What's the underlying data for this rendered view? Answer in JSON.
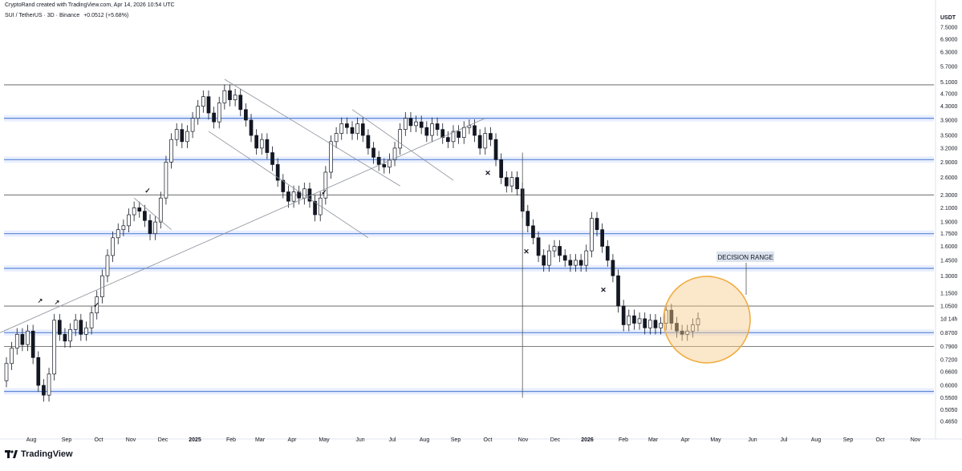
{
  "header": {
    "credit": "CryptoRand created with TradingView.com, Apr 14, 2026 10:54 UTC",
    "symbol_line": "SUI / TetherUS · 3D · Binance",
    "change": "+0.0512 (+5.68%)"
  },
  "footer": {
    "brand": "TradingView"
  },
  "colors": {
    "up": "#ffffff",
    "down": "#131722",
    "level_blue": "#2962ff",
    "circle_fill": "#f7c988",
    "circle_stroke": "#f0a93a"
  },
  "chart_data": {
    "type": "candlestick",
    "title": "SUI / TetherUS · 3D · Binance",
    "ylabel": "USDT",
    "y_scale": "log",
    "ylim": [
      0.43,
      8.6
    ],
    "x_ticks": [
      "Aug",
      "Sep",
      "Oct",
      "Nov",
      "Dec",
      "2025",
      "Feb",
      "Mar",
      "Apr",
      "May",
      "Jun",
      "Jul",
      "Aug",
      "Sep",
      "Oct",
      "Nov",
      "Dec",
      "2026",
      "Feb",
      "Mar",
      "Apr",
      "May",
      "Jun",
      "Jul",
      "Aug",
      "Sep",
      "Oct",
      "Nov"
    ],
    "y_ticks": [
      "7.5000",
      "6.9000",
      "6.3000",
      "5.7000",
      "5.1000",
      "4.7000",
      "4.3000",
      "3.9000",
      "3.5000",
      "3.2000",
      "2.9000",
      "2.6000",
      "2.3000",
      "2.1000",
      "1.9000",
      "1.7500",
      "1.6000",
      "1.4500",
      "1.3000",
      "1.1500",
      "1.0500",
      "1d 14h",
      "0.8700",
      "0.7900",
      "0.7200",
      "0.6600",
      "0.6000",
      "0.5500",
      "0.5050",
      "0.4650"
    ],
    "current_label": "1d 14h",
    "series": [
      {
        "values": [
          [
            0.62,
            0.7
          ],
          [
            0.7,
            0.78
          ],
          [
            0.78,
            0.86
          ],
          [
            0.86,
            0.8
          ],
          [
            0.8,
            0.88
          ],
          [
            0.88,
            0.73
          ],
          [
            0.73,
            0.6
          ],
          [
            0.6,
            0.56
          ],
          [
            0.56,
            0.65
          ],
          [
            0.65,
            0.95
          ],
          [
            0.95,
            0.86
          ],
          [
            0.86,
            0.82
          ],
          [
            0.82,
            0.89
          ],
          [
            0.89,
            0.95
          ],
          [
            0.95,
            0.86
          ],
          [
            0.86,
            0.9
          ],
          [
            0.9,
            1.0
          ],
          [
            1.0,
            1.12
          ],
          [
            1.12,
            1.3
          ],
          [
            1.3,
            1.5
          ],
          [
            1.5,
            1.7
          ],
          [
            1.7,
            1.8
          ],
          [
            1.8,
            1.85
          ],
          [
            1.85,
            2.0
          ],
          [
            2.0,
            2.1
          ],
          [
            2.1,
            2.05
          ],
          [
            2.05,
            1.92
          ],
          [
            1.92,
            1.75
          ],
          [
            1.75,
            1.9
          ],
          [
            1.9,
            2.25
          ],
          [
            2.25,
            2.9
          ],
          [
            2.9,
            3.4
          ],
          [
            3.4,
            3.65
          ],
          [
            3.65,
            3.35
          ],
          [
            3.35,
            3.6
          ],
          [
            3.6,
            3.95
          ],
          [
            3.95,
            4.3
          ],
          [
            4.3,
            4.6
          ],
          [
            4.6,
            4.1
          ],
          [
            4.1,
            3.85
          ],
          [
            3.85,
            4.4
          ],
          [
            4.4,
            4.8
          ],
          [
            4.8,
            4.5
          ],
          [
            4.5,
            4.65
          ],
          [
            4.65,
            4.2
          ],
          [
            4.2,
            3.9
          ],
          [
            3.9,
            3.5
          ],
          [
            3.5,
            3.2
          ],
          [
            3.2,
            3.4
          ],
          [
            3.4,
            3.1
          ],
          [
            3.1,
            2.85
          ],
          [
            2.85,
            2.55
          ],
          [
            2.55,
            2.35
          ],
          [
            2.35,
            2.2
          ],
          [
            2.2,
            2.35
          ],
          [
            2.35,
            2.25
          ],
          [
            2.25,
            2.4
          ],
          [
            2.4,
            2.2
          ],
          [
            2.2,
            2.0
          ],
          [
            2.0,
            2.25
          ],
          [
            2.25,
            2.7
          ],
          [
            2.7,
            3.35
          ],
          [
            3.35,
            3.55
          ],
          [
            3.55,
            3.8
          ],
          [
            3.8,
            3.7
          ],
          [
            3.7,
            3.55
          ],
          [
            3.55,
            3.8
          ],
          [
            3.8,
            3.5
          ],
          [
            3.5,
            3.2
          ],
          [
            3.2,
            3.0
          ],
          [
            3.0,
            2.85
          ],
          [
            2.85,
            2.8
          ],
          [
            2.8,
            2.95
          ],
          [
            2.95,
            3.2
          ],
          [
            3.2,
            3.65
          ],
          [
            3.65,
            3.95
          ],
          [
            3.95,
            3.75
          ],
          [
            3.75,
            3.85
          ],
          [
            3.85,
            3.7
          ],
          [
            3.7,
            3.5
          ],
          [
            3.5,
            3.8
          ],
          [
            3.8,
            3.65
          ],
          [
            3.65,
            3.45
          ],
          [
            3.45,
            3.35
          ],
          [
            3.35,
            3.6
          ],
          [
            3.6,
            3.45
          ],
          [
            3.45,
            3.7
          ],
          [
            3.7,
            3.75
          ],
          [
            3.75,
            3.5
          ],
          [
            3.5,
            3.2
          ],
          [
            3.2,
            3.55
          ],
          [
            3.55,
            3.4
          ],
          [
            3.4,
            2.95
          ],
          [
            2.95,
            2.6
          ],
          [
            2.6,
            2.45
          ],
          [
            2.45,
            2.6
          ],
          [
            2.6,
            2.4
          ],
          [
            2.4,
            2.05
          ],
          [
            2.05,
            1.85
          ],
          [
            1.85,
            1.7
          ],
          [
            1.7,
            1.5
          ],
          [
            1.5,
            1.4
          ],
          [
            1.4,
            1.55
          ],
          [
            1.55,
            1.6
          ],
          [
            1.6,
            1.5
          ],
          [
            1.5,
            1.45
          ],
          [
            1.45,
            1.4
          ],
          [
            1.4,
            1.45
          ],
          [
            1.45,
            1.4
          ],
          [
            1.4,
            1.55
          ],
          [
            1.55,
            1.95
          ],
          [
            1.95,
            1.8
          ],
          [
            1.8,
            1.6
          ],
          [
            1.6,
            1.45
          ],
          [
            1.45,
            1.3
          ],
          [
            1.3,
            1.05
          ],
          [
            1.05,
            0.92
          ],
          [
            0.92,
            0.98
          ],
          [
            0.98,
            0.93
          ],
          [
            0.93,
            0.96
          ],
          [
            0.96,
            0.9
          ],
          [
            0.9,
            0.95
          ],
          [
            0.95,
            0.9
          ],
          [
            0.9,
            0.93
          ],
          [
            0.93,
            1.02
          ],
          [
            1.02,
            0.93
          ],
          [
            0.93,
            0.88
          ],
          [
            0.88,
            0.86
          ],
          [
            0.86,
            0.88
          ],
          [
            0.88,
            0.92
          ],
          [
            0.92,
            0.96
          ]
        ]
      }
    ],
    "horizontal_levels": [
      5.0,
      3.95,
      2.95,
      2.3,
      1.75,
      1.37,
      1.05,
      0.87,
      0.79,
      0.575
    ],
    "blue_zones": [
      3.95,
      2.95,
      1.75,
      1.37,
      0.87,
      0.575
    ],
    "annotations": [
      "DECISION RANGE"
    ]
  }
}
